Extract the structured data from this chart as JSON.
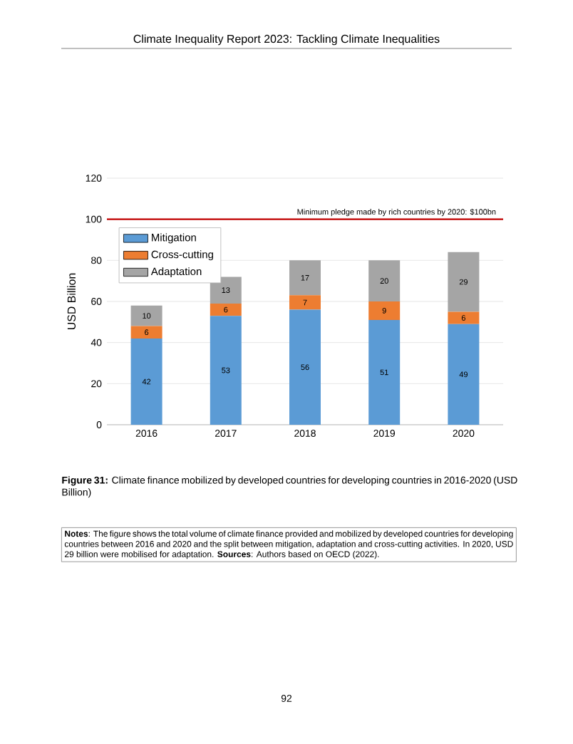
{
  "chart_data": {
    "type": "bar",
    "stacked": true,
    "title": "Climate Inequality Report 2023: Tackling Climate Inequalities",
    "ylabel": "USD Billion",
    "categories": [
      "2016",
      "2017",
      "2018",
      "2019",
      "2020"
    ],
    "series": [
      {
        "name": "Mitigation",
        "color": "#5b9bd5",
        "values": [
          42,
          53,
          56,
          51,
          49
        ]
      },
      {
        "name": "Cross-cutting",
        "color": "#ed7d31",
        "values": [
          6,
          6,
          7,
          9,
          6
        ]
      },
      {
        "name": "Adaptation",
        "color": "#a5a5a5",
        "values": [
          10,
          13,
          17,
          20,
          29
        ]
      }
    ],
    "ylim": [
      0,
      120
    ],
    "yticks": [
      0,
      20,
      40,
      60,
      80,
      100,
      120
    ],
    "grid": "y",
    "legend": "top left",
    "data_labels": true,
    "ref_lines": [
      {
        "axis": "y",
        "value": 100,
        "label": "Minimum pledge made by rich countries by 2020: $100bn",
        "color": "#c00000"
      }
    ],
    "annotations": [
      "**Figure 31:** Climate finance mobilized by developed countries for developing countries in 2016-2020 (USD Billion)",
      "**Notes**: The figure shows the total volume of climate finance provided and mobilized by developed countries for developing countries between 2016 and 2020 and the split between mitigation, adaptation and cross-cutting activities. In 2020, USD 29 billion were mobilised for adaptation. **Sources**: Authors based on OECD (2022).",
      "92"
    ]
  }
}
